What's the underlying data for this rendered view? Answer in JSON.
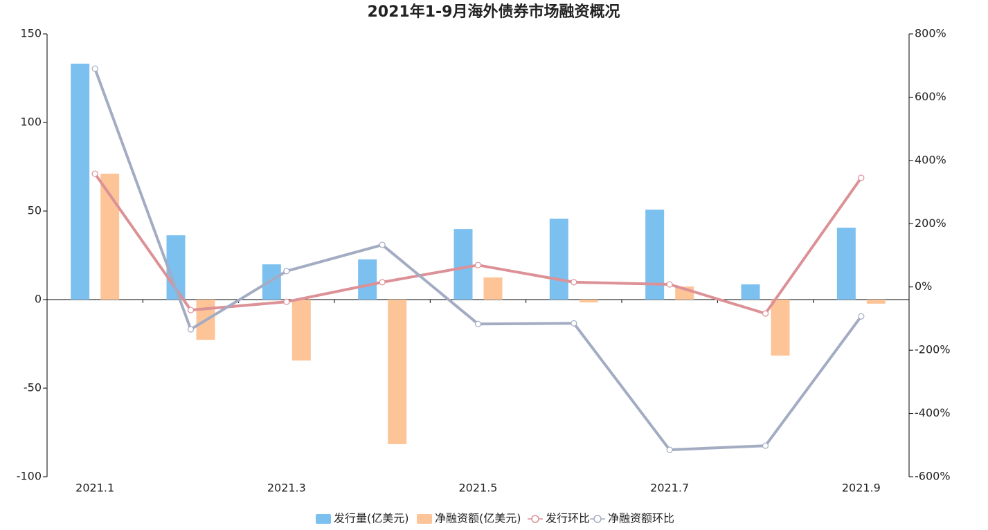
{
  "chart_data": {
    "type": "bar-line",
    "title": "2021年1-9月海外债券市场融资概况",
    "categories": [
      "2021.1",
      null,
      "2021.3",
      null,
      "2021.5",
      null,
      "2021.7",
      null,
      "2021.9"
    ],
    "ylim": [
      -100,
      150
    ],
    "yticks": [
      -100,
      -50,
      0,
      50,
      100,
      150
    ],
    "y2lim": [
      -600,
      800
    ],
    "y2ticks": [
      {
        "value": -600,
        "label": "-600%"
      },
      {
        "value": -400,
        "label": "-400%"
      },
      {
        "value": -200,
        "label": "-200%"
      },
      {
        "value": 0,
        "label": "0%"
      },
      {
        "value": 200,
        "label": "200%"
      },
      {
        "value": 400,
        "label": "400%"
      },
      {
        "value": 600,
        "label": "600%"
      },
      {
        "value": 800,
        "label": "800%"
      }
    ],
    "series": [
      {
        "name": "发行量(亿美元)",
        "type": "bar",
        "color": "#7cc0f0",
        "values": [
          133.2,
          36.3,
          19.9,
          22.7,
          39.8,
          45.7,
          50.8,
          8.6,
          40.6
        ]
      },
      {
        "name": "净融资额(亿美元)",
        "type": "bar",
        "color": "#fcc497",
        "values": [
          71.1,
          -22.7,
          -34.4,
          -81.6,
          12.5,
          -1.6,
          7.4,
          -31.6,
          -2.3
        ]
      },
      {
        "name": "发行环比",
        "type": "line",
        "axis": "y2",
        "color": "#dc9197",
        "values": [
          358,
          -73,
          -47,
          15,
          69,
          15,
          8,
          -84,
          345
        ]
      },
      {
        "name": "净融资额环比",
        "type": "line",
        "axis": "y2",
        "color": "#a3acc2",
        "values": [
          690,
          -134,
          50,
          133,
          -117,
          -115,
          -515,
          -502,
          -93
        ]
      }
    ]
  }
}
